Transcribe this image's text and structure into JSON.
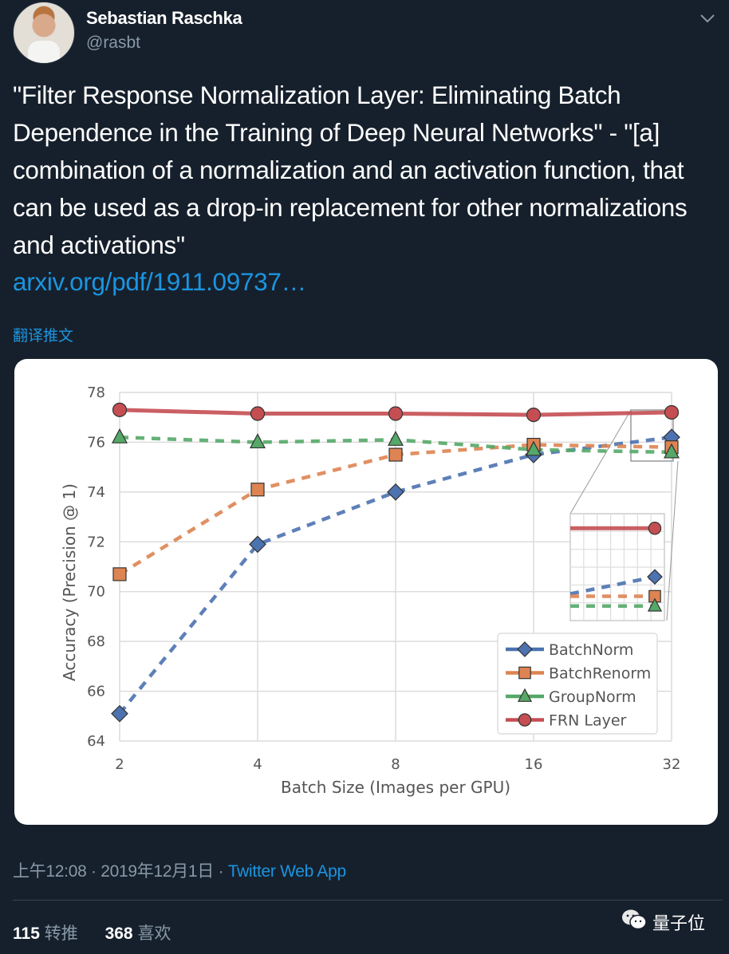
{
  "user": {
    "name": "Sebastian Raschka",
    "handle": "@rasbt"
  },
  "tweet": {
    "text": "\"Filter Response Normalization Layer: Eliminating Batch Dependence in the Training of Deep Neural Networks\" - \"[a] combination of a normalization and an activation function, that can be used as a drop-in replacement for other normalizations and activations\"",
    "link": "arxiv.org/pdf/1911.09737…",
    "translate_label": "翻译推文",
    "time": "上午12:08",
    "separator": "·",
    "date": "2019年12月1日",
    "source": "Twitter Web App"
  },
  "stats": {
    "retweets_count": "115",
    "retweets_label": "转推",
    "likes_count": "368",
    "likes_label": "喜欢"
  },
  "watermark": {
    "label": "量子位"
  },
  "icons": {
    "caret": "chevron-down-icon",
    "watermark": "wechat-icon"
  },
  "colors": {
    "background": "#16202c",
    "link": "#1b95e0",
    "muted": "#8899a6",
    "batchnorm": "#4c72b0",
    "batchrenorm": "#dd8452",
    "groupnorm": "#55a868",
    "frn": "#c44e52"
  },
  "chart_data": {
    "type": "line",
    "title": "",
    "xlabel": "Batch Size (Images per GPU)",
    "ylabel": "Accuracy (Precision @ 1)",
    "x": [
      2,
      4,
      8,
      16,
      32
    ],
    "x_tick_labels": [
      "2",
      "4",
      "8",
      "16",
      "32"
    ],
    "x_scale": "log2",
    "y_ticks": [
      64,
      66,
      68,
      70,
      72,
      74,
      76,
      78
    ],
    "ylim": [
      64,
      78
    ],
    "grid": true,
    "legend_position": "lower-right",
    "inset": "zoomed view of batch size 32 region (upper-right), shown middle-right",
    "series": [
      {
        "name": "BatchNorm",
        "marker": "diamond",
        "linestyle": "dashed",
        "color": "#4c72b0",
        "values": [
          65.1,
          71.9,
          74.0,
          75.5,
          76.2
        ]
      },
      {
        "name": "BatchRenorm",
        "marker": "square",
        "linestyle": "dashed",
        "color": "#dd8452",
        "values": [
          70.7,
          74.1,
          75.5,
          75.9,
          75.8
        ]
      },
      {
        "name": "GroupNorm",
        "marker": "triangle",
        "linestyle": "dashed",
        "color": "#55a868",
        "values": [
          76.2,
          76.0,
          76.1,
          75.7,
          75.6
        ]
      },
      {
        "name": "FRN Layer",
        "marker": "circle",
        "linestyle": "solid",
        "color": "#c44e52",
        "values": [
          77.3,
          77.15,
          77.15,
          77.1,
          77.2
        ]
      }
    ]
  }
}
